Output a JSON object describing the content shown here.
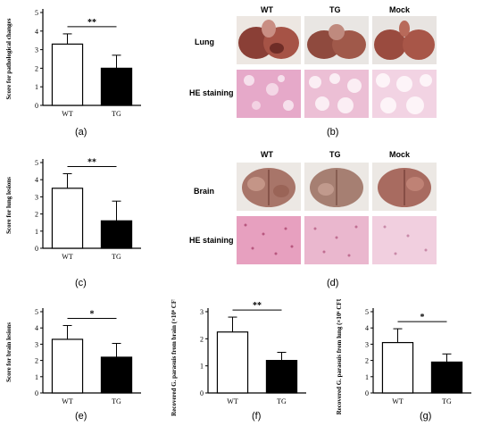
{
  "panel_labels": [
    "(a)",
    "(b)",
    "(c)",
    "(d)",
    "(e)",
    "(f)",
    "(g)"
  ],
  "photo_panels": {
    "b": {
      "columns": [
        "WT",
        "TG",
        "Mock"
      ],
      "rows": [
        "Lung",
        "HE staining"
      ],
      "colors": {
        "tissue": "#8a3f36",
        "tissue_light": "#b86a5a",
        "stain": "#e6a9c9",
        "stain_light": "#f2d3e3"
      }
    },
    "d": {
      "columns": [
        "WT",
        "TG",
        "Mock"
      ],
      "rows": [
        "Brain",
        "HE staining"
      ],
      "colors": {
        "tissue": "#9a6b63",
        "tissue_light": "#c79a8d",
        "stain": "#e7a0bf",
        "stain_light": "#f1cfdf"
      }
    }
  },
  "chart_data": [
    {
      "id": "a",
      "type": "bar",
      "categories": [
        "WT",
        "TG"
      ],
      "values": [
        3.3,
        2.0
      ],
      "errors": [
        0.55,
        0.7
      ],
      "bar_fills": [
        "#ffffff",
        "#000000"
      ],
      "ylabel": "Score for pathological changes",
      "ylim": [
        0,
        5
      ],
      "yticks": [
        "0",
        "1",
        "2",
        "3",
        "4",
        "5"
      ],
      "significance": "**"
    },
    {
      "id": "c",
      "type": "bar",
      "categories": [
        "WT",
        "TG"
      ],
      "values": [
        3.5,
        1.6
      ],
      "errors": [
        0.85,
        1.15
      ],
      "bar_fills": [
        "#ffffff",
        "#000000"
      ],
      "ylabel": "Score for lung lesions",
      "ylim": [
        0,
        5
      ],
      "yticks": [
        "0",
        "1",
        "2",
        "3",
        "4",
        "5"
      ],
      "significance": "**"
    },
    {
      "id": "e",
      "type": "bar",
      "categories": [
        "WT",
        "TG"
      ],
      "values": [
        3.3,
        2.2
      ],
      "errors": [
        0.85,
        0.85
      ],
      "bar_fills": [
        "#ffffff",
        "#000000"
      ],
      "ylabel": "Score for brain lesions",
      "ylim": [
        0,
        5
      ],
      "yticks": [
        "0",
        "1",
        "2",
        "3",
        "4",
        "5"
      ],
      "significance": "*"
    },
    {
      "id": "f",
      "type": "bar",
      "categories": [
        "WT",
        "TG"
      ],
      "values": [
        2.25,
        1.2
      ],
      "errors": [
        0.55,
        0.3
      ],
      "bar_fills": [
        "#ffffff",
        "#000000"
      ],
      "ylabel": "Recovered G. parasuis from brain (×10⁶ CFU/g)",
      "ylim": [
        0,
        3
      ],
      "yticks": [
        "0",
        "1",
        "2",
        "3"
      ],
      "significance": "**"
    },
    {
      "id": "g",
      "type": "bar",
      "categories": [
        "WT",
        "TG"
      ],
      "values": [
        3.1,
        1.9
      ],
      "errors": [
        0.85,
        0.5
      ],
      "bar_fills": [
        "#ffffff",
        "#000000"
      ],
      "ylabel": "Recovered G. parasuis from lung (×10⁶ CFU/g)",
      "ylim": [
        0,
        5
      ],
      "yticks": [
        "0",
        "1",
        "2",
        "3",
        "4",
        "5"
      ],
      "significance": "*"
    }
  ]
}
